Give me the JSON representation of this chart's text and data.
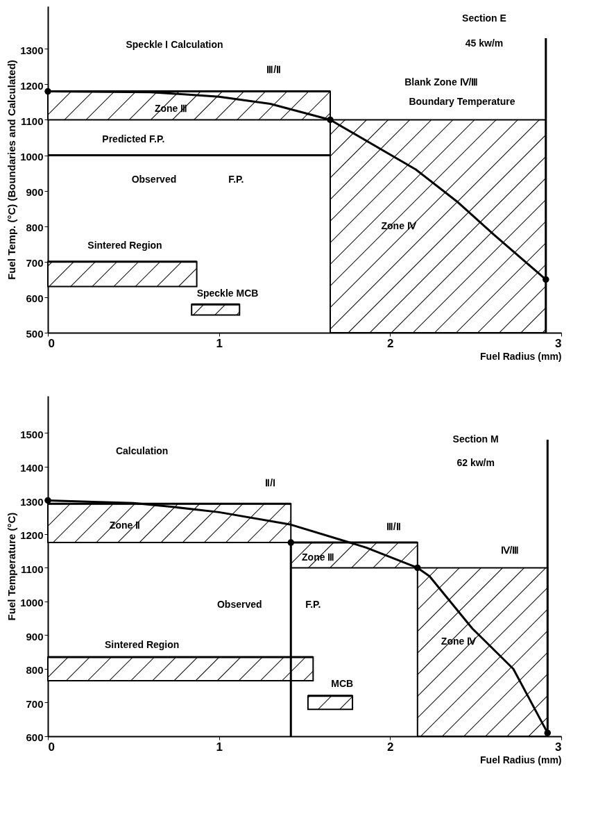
{
  "chart_data": [
    {
      "type": "line",
      "xlabel": "Fuel Radius (mm)",
      "ylabel": "Fuel Temp. (°C) (Boundaries and Calculated)",
      "xlim": [
        0,
        3
      ],
      "ylim": [
        500,
        1420
      ],
      "xticks": [
        0,
        1,
        2,
        3
      ],
      "yticks": [
        500,
        600,
        700,
        800,
        900,
        1000,
        1100,
        1200,
        1300
      ],
      "series": [
        {
          "color": "#000000",
          "x": [
            0,
            1.65
          ],
          "values": [
            1180,
            1180
          ],
          "lower": [
            1100,
            1100
          ],
          "upper": [
            1180,
            1180
          ]
        },
        {
          "type": "area",
          "color": "#000000",
          "x": [
            1.65,
            2.91
          ],
          "values": [
            1100,
            1100
          ]
        },
        {
          "color": "#000000",
          "x": [
            0,
            0.87
          ],
          "values": [
            700,
            700
          ],
          "lower": [
            630,
            630
          ],
          "upper": [
            700,
            700
          ]
        },
        {
          "color": "#000000",
          "x": [
            0.84,
            1.12
          ],
          "values": [
            580,
            580
          ],
          "lower": [
            550,
            550
          ],
          "upper": [
            580,
            580
          ]
        },
        {
          "color": "#000000",
          "x": [
            0,
            1.65
          ],
          "values": [
            1000,
            1000
          ]
        },
        {
          "color": "#000000",
          "x": [
            2.91,
            2.91
          ],
          "values": [
            500,
            1330
          ]
        },
        {
          "color": "#000000",
          "x": [
            0,
            0.6,
            1.0,
            1.3,
            1.65,
            2.15,
            2.39,
            2.61,
            2.91
          ],
          "values": [
            1180,
            1178,
            1165,
            1145,
            1100,
            960,
            870,
            775,
            650
          ]
        },
        {
          "type": "scatter",
          "color": "#000000",
          "x": [
            0,
            1.65,
            2.91
          ],
          "values": [
            1180,
            1100,
            650
          ]
        }
      ],
      "annotations": [
        "Speckle Ⅰ Calculation",
        "Ⅲ/Ⅱ",
        "Zone Ⅲ",
        "Blank Zone Ⅳ/Ⅲ",
        "Boundary Temperature",
        "Predicted F.P.",
        "Observed",
        "F.P.",
        "Zone Ⅳ",
        "Sintered Region",
        "Speckle MCB",
        "Section E",
        "45 kw/m"
      ]
    },
    {
      "type": "line",
      "xlabel": "Fuel Radius (mm)",
      "ylabel": "Fuel Temperature (°C)",
      "xlim": [
        0,
        3
      ],
      "ylim": [
        600,
        1610
      ],
      "xticks": [
        0,
        1,
        2,
        3
      ],
      "yticks": [
        600,
        700,
        800,
        900,
        1000,
        1100,
        1200,
        1300,
        1400,
        1500
      ],
      "series": [
        {
          "color": "#000000",
          "x": [
            0,
            1.42
          ],
          "values": [
            1290,
            1290
          ],
          "lower": [
            1175,
            1175
          ],
          "upper": [
            1290,
            1290
          ]
        },
        {
          "color": "#000000",
          "x": [
            1.42,
            2.16
          ],
          "values": [
            1175,
            1175
          ],
          "lower": [
            1100,
            1100
          ],
          "upper": [
            1175,
            1175
          ]
        },
        {
          "type": "area",
          "color": "#000000",
          "x": [
            2.16,
            2.92
          ],
          "values": [
            1100,
            1100
          ]
        },
        {
          "color": "#000000",
          "x": [
            0,
            1.55
          ],
          "values": [
            835,
            835
          ],
          "lower": [
            765,
            765
          ],
          "upper": [
            835,
            835
          ]
        },
        {
          "color": "#000000",
          "x": [
            1.52,
            1.78
          ],
          "values": [
            720,
            720
          ],
          "lower": [
            680,
            680
          ],
          "upper": [
            720,
            720
          ]
        },
        {
          "color": "#000000",
          "x": [
            1.42,
            1.42
          ],
          "values": [
            600,
            1175
          ]
        },
        {
          "color": "#000000",
          "x": [
            2.92,
            2.92
          ],
          "values": [
            600,
            1480
          ]
        },
        {
          "color": "#000000",
          "x": [
            0,
            0.5,
            0.74,
            1.0,
            1.42,
            1.86,
            2.16,
            2.23,
            2.48,
            2.72,
            2.92
          ],
          "values": [
            1300,
            1292,
            1280,
            1265,
            1228,
            1160,
            1100,
            1075,
            920,
            800,
            610
          ]
        },
        {
          "type": "scatter",
          "color": "#000000",
          "x": [
            0,
            1.42,
            2.16,
            2.92
          ],
          "values": [
            1300,
            1175,
            1100,
            610
          ]
        }
      ],
      "annotations": [
        "Calculation",
        "Ⅱ/Ⅰ",
        "Zone Ⅱ",
        "Ⅲ/Ⅱ",
        "Zone Ⅲ",
        "Ⅳ/Ⅲ",
        "Observed",
        "F.P.",
        "Sintered Region",
        "MCB",
        "Zone Ⅳ",
        "Section M",
        "62 kw/m"
      ]
    }
  ]
}
